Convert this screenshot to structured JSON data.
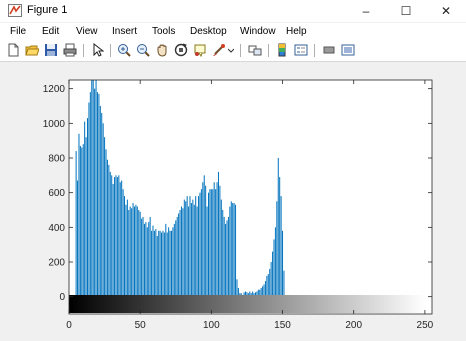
{
  "window": {
    "title": "Figure 1",
    "minimize": "–",
    "maximize": "☐",
    "close": "✕"
  },
  "menu": [
    "File",
    "Edit",
    "View",
    "Insert",
    "Tools",
    "Desktop",
    "Window",
    "Help"
  ],
  "toolbar_icons": [
    "new-figure-icon",
    "open-file-icon",
    "save-icon",
    "print-icon",
    "pointer-icon",
    "zoom-in-icon",
    "zoom-out-icon",
    "pan-icon",
    "rotate-3d-icon",
    "data-cursor-icon",
    "brush-icon",
    "link-plot-icon",
    "colorbar-icon",
    "legend-icon",
    "hide-plot-tools-icon",
    "show-plot-tools-icon"
  ],
  "colors": {
    "bar": "#0072BD",
    "axes": "#262626",
    "figure_bg": "#f0f0f0",
    "axes_bg": "#ffffff"
  },
  "chart_data": {
    "type": "bar",
    "title": "",
    "xlabel": "",
    "ylabel": "",
    "xlim": [
      0,
      255
    ],
    "ylim": [
      -100,
      1250
    ],
    "x_ticks": [
      0,
      50,
      100,
      150,
      200,
      250
    ],
    "y_ticks": [
      0,
      200,
      400,
      600,
      800,
      1000,
      1200
    ],
    "colorbar": "gray ramp 0 to 255 below the axis",
    "series": [
      {
        "x_start": 5,
        "values": [
          840,
          670,
          940,
          870,
          860,
          880,
          1010,
          920,
          1030,
          1120,
          1180,
          1250,
          1250,
          1200,
          1250,
          1180,
          1170,
          1100,
          1060,
          1000,
          920,
          850,
          790,
          760,
          720,
          700,
          650,
          690,
          700,
          690,
          700,
          660,
          670,
          620,
          580,
          530,
          560,
          500,
          520,
          510,
          540,
          520,
          530,
          520,
          500,
          490,
          450,
          460,
          420,
          430,
          400,
          430,
          460,
          380,
          410,
          380,
          390,
          350,
          380,
          380,
          370,
          380,
          370,
          420,
          370,
          400,
          380,
          380,
          400,
          420,
          440,
          460,
          480,
          500,
          520,
          510,
          560,
          550,
          580,
          520,
          580,
          540,
          560,
          530,
          580,
          520,
          580,
          600,
          620,
          660,
          700,
          640,
          520,
          600,
          620,
          620,
          620,
          660,
          620,
          660,
          720,
          640,
          560,
          500,
          460,
          420,
          440,
          460,
          520,
          550,
          540,
          540,
          530,
          100,
          50,
          20,
          20,
          10,
          25,
          30,
          25,
          20,
          30,
          20,
          30,
          20,
          25,
          30,
          40,
          40,
          50,
          60,
          70,
          90,
          120,
          130,
          160,
          200,
          260,
          330,
          400,
          550,
          800,
          690,
          580,
          380,
          150
        ]
      }
    ]
  }
}
